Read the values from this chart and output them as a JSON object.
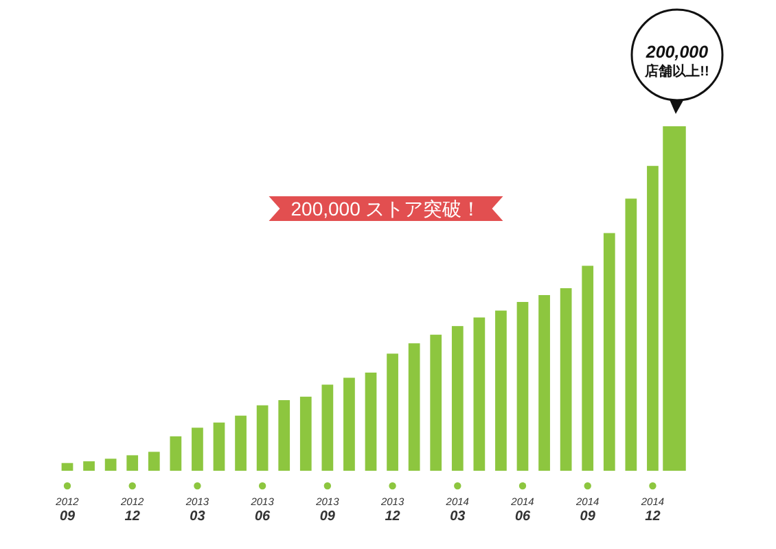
{
  "chart_data": {
    "type": "bar",
    "categories": [
      "2012\n09",
      null,
      null,
      "2012\n12",
      null,
      null,
      "2013\n03",
      null,
      null,
      "2013\n06",
      null,
      null,
      "2013\n09",
      null,
      null,
      "2013\n12",
      null,
      null,
      "2014\n03",
      null,
      null,
      "2014\n06",
      null,
      null,
      "2014\n09",
      null,
      null,
      "2014\n12",
      null
    ],
    "values": [
      4500,
      5500,
      7000,
      9000,
      11000,
      20000,
      25000,
      28000,
      32000,
      38000,
      41000,
      43000,
      50000,
      54000,
      57000,
      68000,
      74000,
      79000,
      84000,
      89000,
      93000,
      98000,
      102000,
      106000,
      119000,
      138000,
      158000,
      177000,
      200000
    ],
    "color": "#8dc63f",
    "value_labels": [
      null,
      null,
      null,
      null,
      null,
      null,
      null,
      null,
      null,
      null,
      null,
      null,
      null,
      null,
      null,
      null,
      null,
      null,
      null,
      null,
      null,
      null,
      null,
      null,
      null,
      null,
      null,
      null,
      "200,000\n店舗以上!!"
    ],
    "annotations": [
      "200,000 ストア突破！"
    ]
  }
}
